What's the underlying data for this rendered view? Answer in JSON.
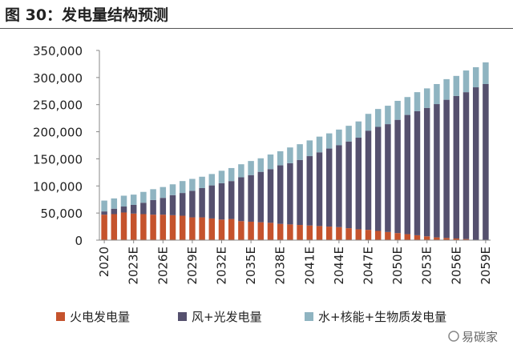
{
  "title": "图 30：发电量结构预测",
  "watermark": "易碳家",
  "chart_data": {
    "type": "bar",
    "stacked": true,
    "title": "图 30：发电量结构预测",
    "xlabel": "",
    "ylabel": "",
    "ylim": [
      0,
      350000
    ],
    "yticks": [
      "0",
      "50,000",
      "100,000",
      "150,000",
      "200,000",
      "250,000",
      "300,000",
      "350,000"
    ],
    "grid": false,
    "legend_position": "bottom",
    "categories": [
      "2020",
      "2021E",
      "2022E",
      "2023E",
      "2024E",
      "2025E",
      "2026E",
      "2027E",
      "2028E",
      "2029E",
      "2030E",
      "2031E",
      "2032E",
      "2033E",
      "2034E",
      "2035E",
      "2036E",
      "2037E",
      "2038E",
      "2039E",
      "2040E",
      "2041E",
      "2042E",
      "2043E",
      "2044E",
      "2045E",
      "2046E",
      "2047E",
      "2048E",
      "2049E",
      "2050E",
      "2051E",
      "2052E",
      "2053E",
      "2054E",
      "2055E",
      "2056E",
      "2057E",
      "2058E",
      "2059E"
    ],
    "xtick_labels": [
      "2020",
      "2023E",
      "2026E",
      "2029E",
      "2032E",
      "2035E",
      "2038E",
      "2041E",
      "2044E",
      "2047E",
      "2050E",
      "2053E",
      "2056E",
      "2059E"
    ],
    "series": [
      {
        "name": "火电发电量",
        "color": "#c5532d",
        "values": [
          47000,
          48000,
          51000,
          49000,
          48000,
          47000,
          47000,
          46000,
          45000,
          42000,
          42000,
          40000,
          38000,
          39000,
          35000,
          34000,
          33000,
          32000,
          30000,
          29000,
          28000,
          27000,
          26000,
          25000,
          24000,
          22000,
          20000,
          19000,
          17000,
          15000,
          13000,
          11000,
          9000,
          7000,
          5000,
          4000,
          3000,
          2000,
          0,
          0
        ]
      },
      {
        "name": "风+光发电量",
        "color": "#55506e",
        "values": [
          6000,
          10000,
          11000,
          16000,
          21000,
          27000,
          31000,
          37000,
          42000,
          49000,
          54000,
          61000,
          67000,
          70000,
          81000,
          86000,
          93000,
          99000,
          108000,
          113000,
          120000,
          128000,
          136000,
          144000,
          151000,
          160000,
          169000,
          183000,
          192000,
          199000,
          209000,
          220000,
          229000,
          237000,
          246000,
          255000,
          263000,
          271000,
          282000,
          288000
        ]
      },
      {
        "name": "水+核能+生物质发电量",
        "color": "#8fb4c1",
        "values": [
          20000,
          19000,
          20000,
          19000,
          20000,
          20000,
          20000,
          20000,
          22000,
          22000,
          21000,
          21000,
          23000,
          24000,
          24000,
          26000,
          25000,
          27000,
          26000,
          29000,
          29000,
          29000,
          29000,
          28000,
          29000,
          29000,
          30000,
          31000,
          33000,
          34000,
          35000,
          33000,
          35000,
          36000,
          37000,
          38000,
          37000,
          40000,
          37000,
          40000
        ]
      }
    ]
  }
}
